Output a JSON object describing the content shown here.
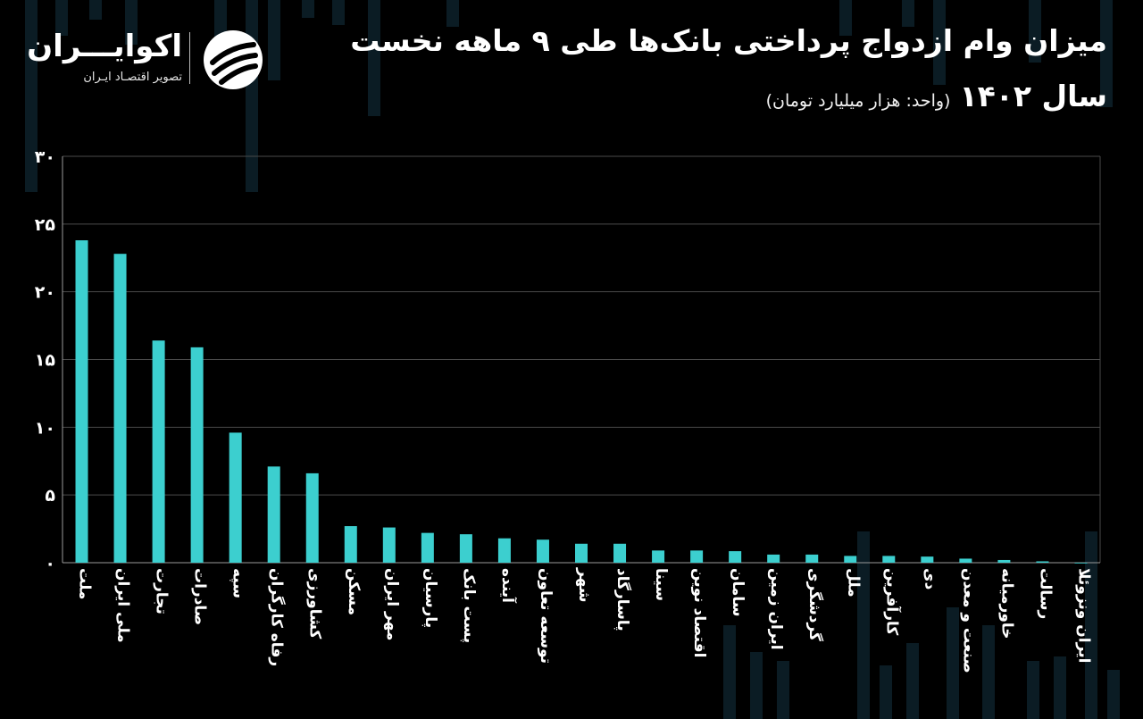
{
  "title_line1": "میزان وام ازدواج پرداختی بانک‌ها طی ۹ ماهه نخست",
  "title_year": "سال ۱۴۰۲",
  "unit_note": "(واحد: هزار میلیارد تومان)",
  "logo": {
    "name": "اکوایـــران",
    "tagline": "تصویر اقتصـاد ایـران",
    "mark_icon": "ekoiran-swoosh-logo"
  },
  "colors": {
    "bar": "#3ccfcf",
    "background": "#000000",
    "grid": "#4a4a4a"
  },
  "chart_data": {
    "type": "bar",
    "title": "میزان وام ازدواج پرداختی بانک‌ها طی ۹ ماهه نخست سال ۱۴۰۲",
    "subtitle": "(واحد: هزار میلیارد تومان)",
    "xlabel": "",
    "ylabel": "",
    "ylim": [
      0,
      30
    ],
    "yticks": [
      0,
      5,
      10,
      15,
      20,
      25,
      30
    ],
    "ytick_labels": [
      "۰",
      "۵",
      "۱۰",
      "۱۵",
      "۲۰",
      "۲۵",
      "۳۰"
    ],
    "grid": true,
    "legend": "none",
    "categories": [
      "ملت",
      "ملی ایران",
      "تجارت",
      "صادرات",
      "سپه",
      "رفاه کارگران",
      "کشاورزی",
      "مسکن",
      "مهر ایران",
      "پارسیان",
      "پست بانک",
      "آینده",
      "توسعه تعاون",
      "شهر",
      "پاسارگاد",
      "سینا",
      "اقتصاد نوین",
      "سامان",
      "ایران زمین",
      "گردشگری",
      "ملل",
      "کارآفرین",
      "دی",
      "صنعت و معدن",
      "خاورمیانه",
      "رسالت",
      "ایران ونزوئلا"
    ],
    "values": [
      23.8,
      22.8,
      16.4,
      15.9,
      9.6,
      7.1,
      6.6,
      2.7,
      2.6,
      2.2,
      2.1,
      1.8,
      1.7,
      1.4,
      1.4,
      0.9,
      0.9,
      0.85,
      0.6,
      0.6,
      0.5,
      0.5,
      0.45,
      0.3,
      0.2,
      0.1,
      0.0
    ]
  }
}
